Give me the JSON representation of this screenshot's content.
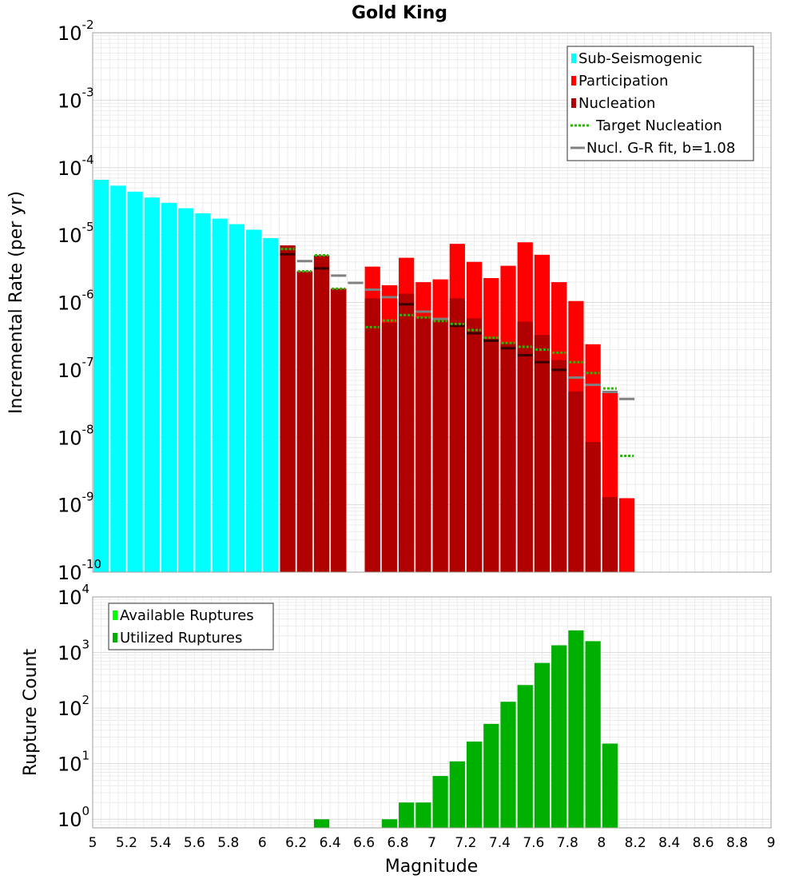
{
  "chart_data": [
    {
      "type": "bar",
      "title": "Gold King",
      "xlabel": "",
      "ylabel": "Incremental Rate (per yr)",
      "xlim": [
        5,
        9
      ],
      "ylim": [
        1e-10,
        0.01
      ],
      "yscale": "log",
      "ytick_exponents": [
        "-10",
        "-9",
        "-8",
        "-7",
        "-6",
        "-5",
        "-4",
        "-3",
        "-2"
      ],
      "ytick_base": "10",
      "grid": true,
      "legend_position": "top-right",
      "legend": [
        {
          "label": "Sub-Seismogenic",
          "color": "#00ffff",
          "style": "bar"
        },
        {
          "label": "Participation",
          "color": "#ff0000",
          "style": "bar"
        },
        {
          "label": "Nucleation",
          "color": "#b00000",
          "style": "bar"
        },
        {
          "label": "Target Nucleation",
          "color": "#22bb00",
          "style": "dotted"
        },
        {
          "label": "Nucl. G-R fit, b=1.08",
          "color": "#808080",
          "style": "line"
        }
      ],
      "bin_width": 0.1,
      "series": [
        {
          "name": "Sub-Seismogenic",
          "x": [
            5.05,
            5.15,
            5.25,
            5.35,
            5.45,
            5.55,
            5.65,
            5.75,
            5.85,
            5.95,
            6.05
          ],
          "values": [
            6.6e-05,
            5.4e-05,
            4.4e-05,
            3.6e-05,
            3e-05,
            2.5e-05,
            2.1e-05,
            1.75e-05,
            1.45e-05,
            1.2e-05,
            9e-06
          ]
        },
        {
          "name": "Participation",
          "x": [
            6.15,
            6.25,
            6.35,
            6.45,
            6.65,
            6.75,
            6.85,
            6.95,
            7.05,
            7.15,
            7.25,
            7.35,
            7.45,
            7.55,
            7.65,
            7.75,
            7.85,
            7.95,
            8.05,
            8.15
          ],
          "values": [
            7e-06,
            2.9e-06,
            5e-06,
            1.6e-06,
            3.4e-06,
            1.8e-06,
            4.6e-06,
            2e-06,
            2.2e-06,
            7.4e-06,
            4e-06,
            2.3e-06,
            3.5e-06,
            7.8e-06,
            5.1e-06,
            2e-06,
            1.05e-06,
            2.4e-07,
            4.6e-08,
            1.25e-09
          ]
        },
        {
          "name": "Nucleation",
          "x": [
            6.15,
            6.25,
            6.35,
            6.45,
            6.65,
            6.75,
            6.85,
            6.95,
            7.05,
            7.15,
            7.25,
            7.35,
            7.45,
            7.55,
            7.65,
            7.75,
            7.85,
            7.95,
            8.05
          ],
          "values": [
            7e-06,
            2.9e-06,
            5e-06,
            1.6e-06,
            1.15e-06,
            5e-07,
            1.35e-06,
            6e-07,
            5.5e-07,
            1.15e-06,
            5.8e-07,
            2.9e-07,
            2.5e-07,
            5.2e-07,
            3.3e-07,
            1.4e-07,
            4.8e-08,
            8.5e-09,
            1.3e-09
          ]
        },
        {
          "name": "Target Nucleation",
          "x": [
            6.15,
            6.25,
            6.35,
            6.45,
            6.65,
            6.75,
            6.85,
            6.95,
            7.05,
            7.15,
            7.25,
            7.35,
            7.45,
            7.55,
            7.65,
            7.75,
            7.85,
            7.95,
            8.05,
            8.15
          ],
          "values": [
            6.2e-06,
            2.9e-06,
            5e-06,
            1.6e-06,
            4.3e-07,
            5.4e-07,
            6.5e-07,
            6e-07,
            5.3e-07,
            4.8e-07,
            3.9e-07,
            3e-07,
            2.5e-07,
            2.2e-07,
            2e-07,
            1.8e-07,
            1.3e-07,
            9e-08,
            5.3e-08,
            5.3e-09
          ]
        },
        {
          "name": "Nucl. G-R fit, b=1.08",
          "x": [
            6.15,
            6.25,
            6.35,
            6.45,
            6.55,
            6.65,
            6.75,
            6.85,
            6.95,
            7.05,
            7.15,
            7.25,
            7.35,
            7.45,
            7.55,
            7.65,
            7.75,
            7.85,
            7.95,
            8.05,
            8.15
          ],
          "values": [
            5.2e-06,
            4.1e-06,
            3.2e-06,
            2.5e-06,
            1.95e-06,
            1.55e-06,
            1.2e-06,
            9.4e-07,
            7.3e-07,
            5.7e-07,
            4.5e-07,
            3.5e-07,
            2.7e-07,
            2.1e-07,
            1.65e-07,
            1.3e-07,
            1e-07,
            7.7e-08,
            6e-08,
            4.7e-08,
            3.7e-08
          ]
        }
      ]
    },
    {
      "type": "bar",
      "title": "",
      "xlabel": "Magnitude",
      "ylabel": "Rupture Count",
      "xlim": [
        5,
        9
      ],
      "ylim": [
        0.7,
        10000
      ],
      "yscale": "log",
      "ytick_exponents": [
        "0",
        "1",
        "2",
        "3",
        "4"
      ],
      "ytick_base": "10",
      "xticks": [
        "5",
        "5.2",
        "5.4",
        "5.6",
        "5.8",
        "6",
        "6.2",
        "6.4",
        "6.6",
        "6.8",
        "7",
        "7.2",
        "7.4",
        "7.6",
        "7.8",
        "8",
        "8.2",
        "8.4",
        "8.6",
        "8.8",
        "9"
      ],
      "grid": true,
      "legend_position": "top-left",
      "legend": [
        {
          "label": "Available Ruptures",
          "color": "#00ff00",
          "style": "bar"
        },
        {
          "label": "Utilized Ruptures",
          "color": "#00b000",
          "style": "bar"
        }
      ],
      "bin_width": 0.1,
      "series": [
        {
          "name": "Utilized Ruptures",
          "x": [
            6.35,
            6.75,
            6.85,
            6.95,
            7.05,
            7.15,
            7.25,
            7.35,
            7.45,
            7.55,
            7.65,
            7.75,
            7.85,
            7.95,
            8.05
          ],
          "values": [
            1,
            1,
            2,
            2,
            6,
            11,
            25,
            52,
            130,
            260,
            650,
            1350,
            2500,
            1600,
            23
          ]
        }
      ]
    }
  ]
}
